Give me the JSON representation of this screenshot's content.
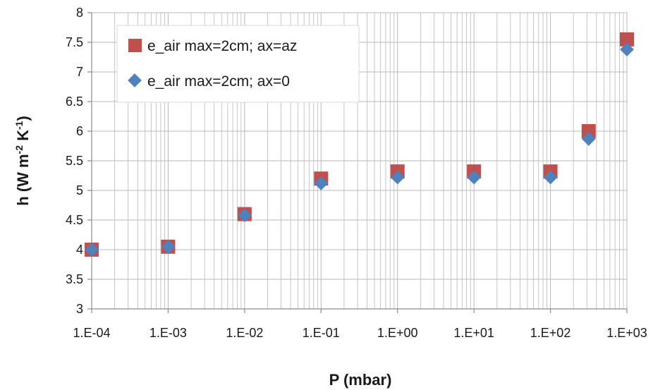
{
  "chart_data": {
    "type": "scatter",
    "title": "",
    "xlabel": "P (mbar)",
    "ylabel_parts": {
      "base": "h (W m",
      "sup1": "-2",
      "mid": " K",
      "sup2": "-1",
      "end": ")"
    },
    "x_scale": "log",
    "xlim": [
      0.0001,
      1000
    ],
    "ylim": [
      3,
      8
    ],
    "x_ticks": [
      {
        "value": 0.0001,
        "label": "1.E-04"
      },
      {
        "value": 0.001,
        "label": "1.E-03"
      },
      {
        "value": 0.01,
        "label": "1.E-02"
      },
      {
        "value": 0.1,
        "label": "1.E-01"
      },
      {
        "value": 1,
        "label": "1.E+00"
      },
      {
        "value": 10,
        "label": "1.E+01"
      },
      {
        "value": 100,
        "label": "1.E+02"
      },
      {
        "value": 1000,
        "label": "1.E+03"
      }
    ],
    "y_ticks": [
      {
        "value": 3,
        "label": "3"
      },
      {
        "value": 3.5,
        "label": "3.5"
      },
      {
        "value": 4,
        "label": "4"
      },
      {
        "value": 4.5,
        "label": "4.5"
      },
      {
        "value": 5,
        "label": "5"
      },
      {
        "value": 5.5,
        "label": "5.5"
      },
      {
        "value": 6,
        "label": "6"
      },
      {
        "value": 6.5,
        "label": "6.5"
      },
      {
        "value": 7,
        "label": "7"
      },
      {
        "value": 7.5,
        "label": "7.5"
      },
      {
        "value": 8,
        "label": "8"
      }
    ],
    "grid": true,
    "legend_position": "top-left",
    "series": [
      {
        "name": "e_air max=2cm; ax=az",
        "marker": "square",
        "color": "#c0504d",
        "points": [
          {
            "x": 0.0001,
            "y": 4.0
          },
          {
            "x": 0.001,
            "y": 4.05
          },
          {
            "x": 0.01,
            "y": 4.6
          },
          {
            "x": 0.1,
            "y": 5.2
          },
          {
            "x": 1,
            "y": 5.32
          },
          {
            "x": 10,
            "y": 5.32
          },
          {
            "x": 100,
            "y": 5.32
          },
          {
            "x": 316,
            "y": 6.0
          },
          {
            "x": 1000,
            "y": 7.55
          }
        ]
      },
      {
        "name": "e_air max=2cm; ax=0",
        "marker": "diamond",
        "color": "#4f81bd",
        "points": [
          {
            "x": 0.0001,
            "y": 4.0
          },
          {
            "x": 0.001,
            "y": 4.05
          },
          {
            "x": 0.01,
            "y": 4.58
          },
          {
            "x": 0.1,
            "y": 5.12
          },
          {
            "x": 1,
            "y": 5.22
          },
          {
            "x": 10,
            "y": 5.22
          },
          {
            "x": 100,
            "y": 5.22
          },
          {
            "x": 316,
            "y": 5.87
          },
          {
            "x": 1000,
            "y": 7.38
          }
        ]
      }
    ]
  },
  "colors": {
    "grid": "#b8b8b8",
    "axis": "#8c8c8c",
    "legend_border": "#d9d9d9"
  }
}
